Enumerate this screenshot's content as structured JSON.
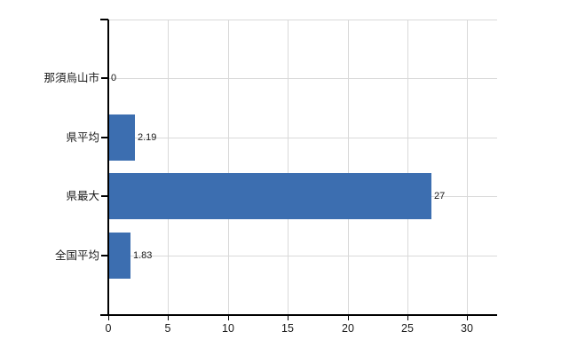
{
  "chart_data": {
    "type": "bar",
    "orientation": "horizontal",
    "title": "",
    "xlabel": "",
    "ylabel": "",
    "categories": [
      "那須烏山市",
      "県平均",
      "県最大",
      "全国平均"
    ],
    "values": [
      0,
      2.19,
      27,
      1.83
    ],
    "value_labels": [
      "0",
      "2.19",
      "27",
      "1.83"
    ],
    "x_ticks": [
      "0",
      "5",
      "10",
      "15",
      "20",
      "25",
      "30"
    ],
    "x_tick_values": [
      0,
      5,
      10,
      15,
      20,
      25,
      30
    ],
    "xlim": [
      0,
      32.5
    ],
    "grid": true,
    "legend": false,
    "colors": {
      "bar": "#3c6eb0",
      "gridline": "#d9d9d9",
      "axis": "#000000",
      "text": "#1a1a1a",
      "background": "#ffffff"
    }
  }
}
